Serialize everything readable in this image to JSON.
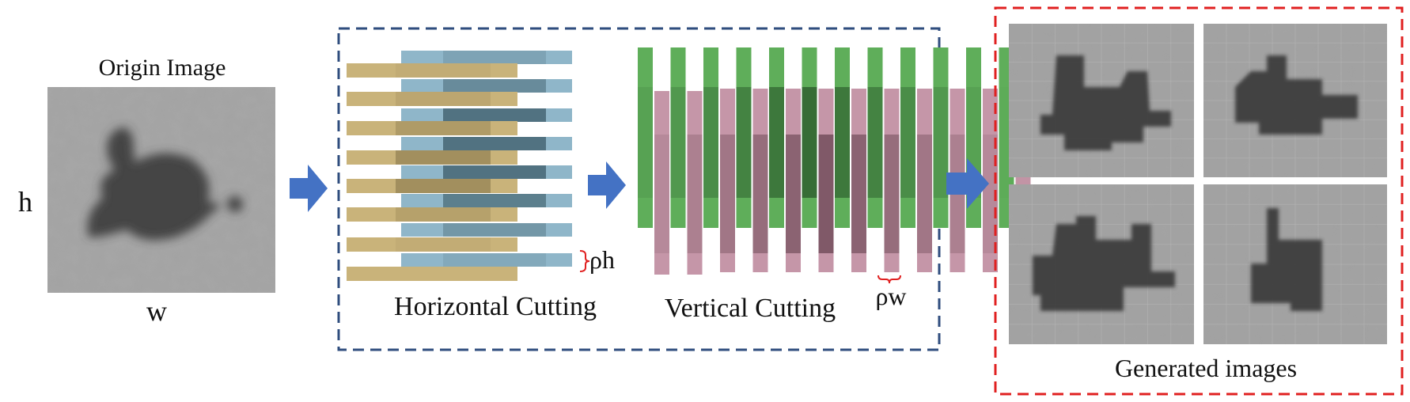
{
  "origin": {
    "title": "Origin Image",
    "height_symbol": "h",
    "width_symbol": "w"
  },
  "cutting": {
    "horizontal_label": "Horizontal Cutting",
    "vertical_label": "Vertical Cutting",
    "rho_h": "ρh",
    "rho_w": "ρw",
    "strip_colors": {
      "horizontal_a": "#c9b37a",
      "horizontal_b": "#8fb6c9",
      "vertical_a": "#5fae5a",
      "vertical_b": "#c596a8"
    }
  },
  "generated": {
    "label": "Generated images"
  },
  "colors": {
    "arrow": "#4472c4",
    "dashed_blue": "#2f4d7e",
    "dashed_red": "#e02020",
    "brace_red": "#e02020"
  },
  "icons": [
    "arrow-right-icon"
  ]
}
